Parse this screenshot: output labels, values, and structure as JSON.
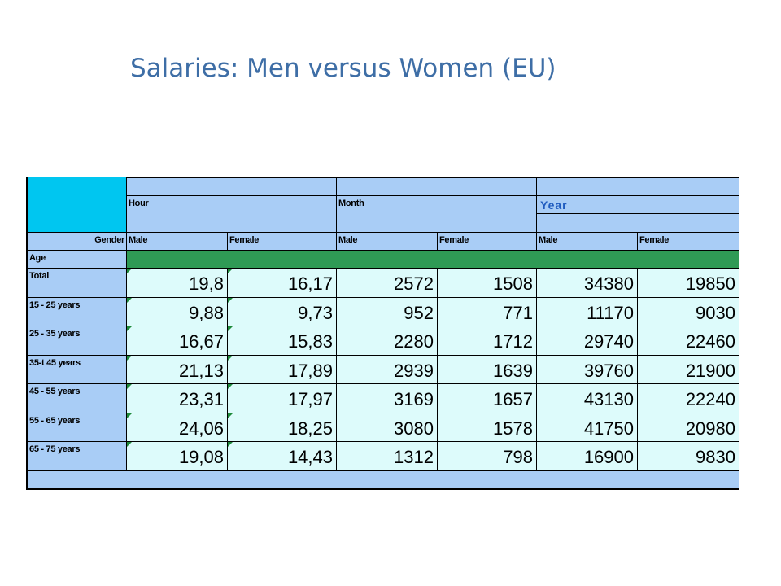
{
  "title": "Salaries: Men versus Women (EU)",
  "table": {
    "period_headers": [
      "Hour",
      "Month",
      "Year"
    ],
    "gender_label": "Gender",
    "age_label": "Age",
    "genders": [
      "Male",
      "Female",
      "Male",
      "Female",
      "Male",
      "Female"
    ]
  },
  "chart_data": {
    "type": "table",
    "title": "Salaries: Men versus Women (EU)",
    "columns": [
      "Hour Male",
      "Hour Female",
      "Month Male",
      "Month Female",
      "Year Male",
      "Year Female"
    ],
    "rows": [
      {
        "label": "Total",
        "values": [
          "19,8",
          "16,17",
          "2572",
          "1508",
          "34380",
          "19850"
        ]
      },
      {
        "label": "15 - 25 years",
        "values": [
          "9,88",
          "9,73",
          "952",
          "771",
          "11170",
          "9030"
        ]
      },
      {
        "label": "25 - 35 years",
        "values": [
          "16,67",
          "15,83",
          "2280",
          "1712",
          "29740",
          "22460"
        ]
      },
      {
        "label": "35-t 45 years",
        "values": [
          "21,13",
          "17,89",
          "2939",
          "1639",
          "39760",
          "21900"
        ]
      },
      {
        "label": "45 - 55 years",
        "values": [
          "23,31",
          "17,97",
          "3169",
          "1657",
          "43130",
          "22240"
        ]
      },
      {
        "label": "55 - 65 years",
        "values": [
          "24,06",
          "18,25",
          "3080",
          "1578",
          "41750",
          "20980"
        ]
      },
      {
        "label": "65 - 75 years",
        "values": [
          "19,08",
          "14,43",
          "1312",
          "798",
          "16900",
          "9830"
        ]
      }
    ]
  }
}
